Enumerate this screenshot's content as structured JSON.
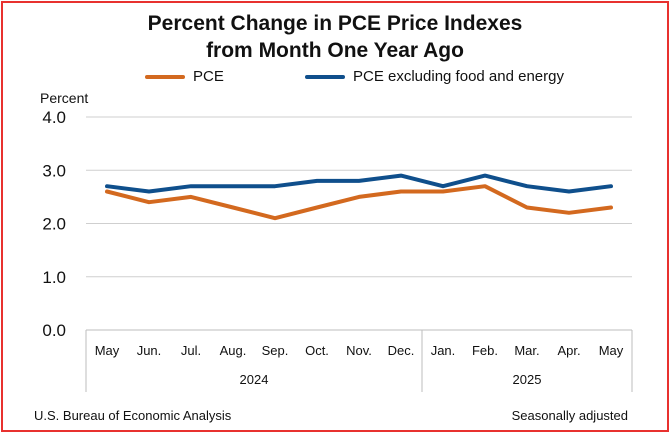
{
  "title_line1": "Percent Change in PCE Price Indexes",
  "title_line2": "from Month One Year Ago",
  "footer": {
    "source": "U.S. Bureau of Economic Analysis",
    "note": "Seasonally adjusted"
  },
  "chart_data": {
    "type": "line",
    "title": "Percent Change in PCE Price Indexes from Month One Year Ago",
    "ylabel": "Percent",
    "xlabel": "",
    "ylim": [
      0.0,
      4.0
    ],
    "yticks": [
      "0.0",
      "1.0",
      "2.0",
      "3.0",
      "4.0"
    ],
    "categories": [
      "May",
      "Jun.",
      "Jul.",
      "Aug.",
      "Sep.",
      "Oct.",
      "Nov.",
      "Dec.",
      "Jan.",
      "Feb.",
      "Mar.",
      "Apr.",
      "May"
    ],
    "year_groups": [
      {
        "label": "2024",
        "start": 0,
        "end": 7
      },
      {
        "label": "2025",
        "start": 8,
        "end": 12
      }
    ],
    "grid": "horizontal",
    "legend_position": "top",
    "series": [
      {
        "name": "PCE",
        "color": "#d3691f",
        "values": [
          2.6,
          2.4,
          2.5,
          2.3,
          2.1,
          2.3,
          2.5,
          2.6,
          2.6,
          2.7,
          2.3,
          2.2,
          2.3
        ]
      },
      {
        "name": "PCE excluding food and energy",
        "color": "#0f4f8c",
        "values": [
          2.7,
          2.6,
          2.7,
          2.7,
          2.7,
          2.8,
          2.8,
          2.9,
          2.7,
          2.9,
          2.7,
          2.6,
          2.7
        ]
      }
    ]
  }
}
